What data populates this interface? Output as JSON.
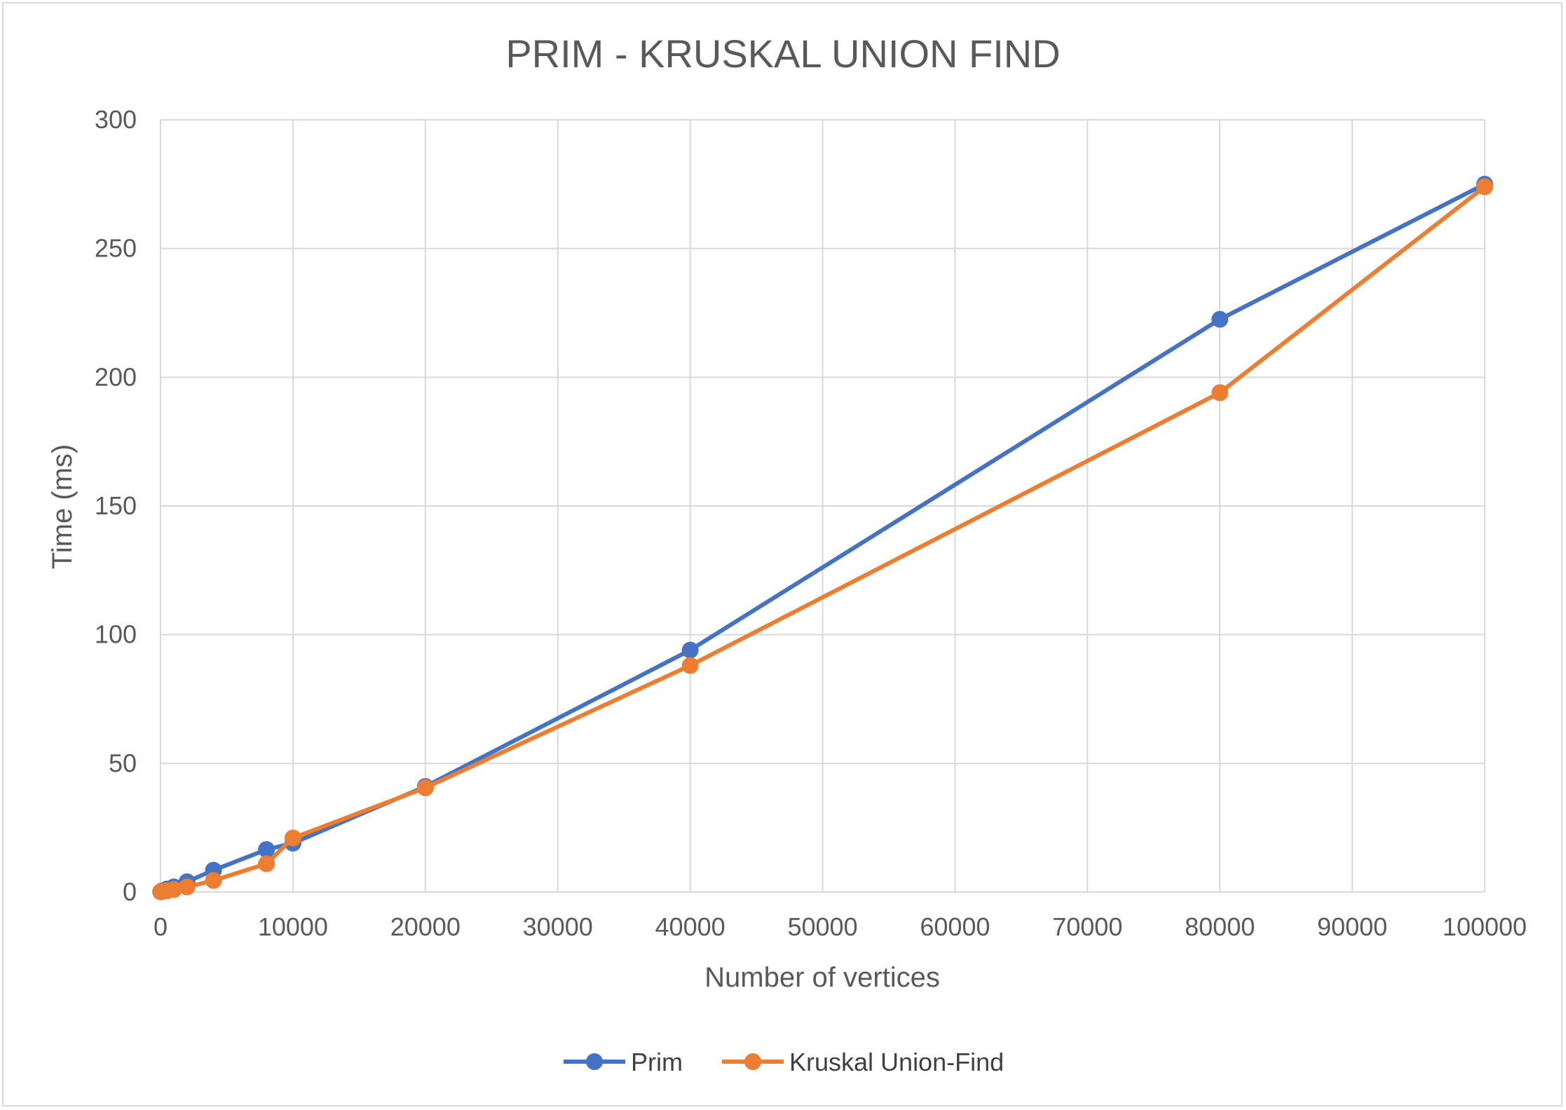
{
  "chart_data": {
    "type": "line",
    "title": "PRIM - KRUSKAL UNION FIND",
    "xlabel": "Number of vertices",
    "ylabel": "Time (ms)",
    "xlim": [
      0,
      100000
    ],
    "ylim": [
      0,
      300
    ],
    "x_ticks": [
      0,
      10000,
      20000,
      30000,
      40000,
      50000,
      60000,
      70000,
      80000,
      90000,
      100000
    ],
    "y_ticks": [
      0,
      50,
      100,
      150,
      200,
      250,
      300
    ],
    "grid": true,
    "legend_position": "bottom",
    "series": [
      {
        "name": "Prim",
        "color": "#4472c4",
        "x": [
          10,
          100,
          500,
          1000,
          2000,
          4000,
          8000,
          10000,
          20000,
          40000,
          80000,
          100000
        ],
        "y": [
          0.1,
          0.4,
          1.2,
          2,
          4,
          8.5,
          16.5,
          19,
          41,
          94,
          222.5,
          275
        ]
      },
      {
        "name": "Kruskal Union-Find",
        "color": "#ed7d31",
        "x": [
          10,
          100,
          500,
          1000,
          2000,
          4000,
          8000,
          10000,
          20000,
          40000,
          80000,
          100000
        ],
        "y": [
          0.1,
          0.2,
          0.5,
          1,
          2,
          4.5,
          11,
          21,
          40.5,
          88,
          194,
          274
        ]
      }
    ]
  }
}
